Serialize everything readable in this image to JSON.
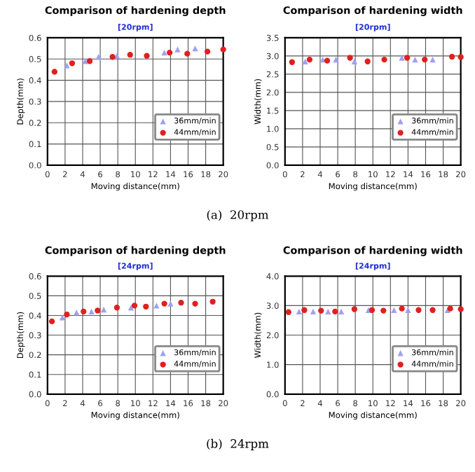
{
  "chart_data": [
    {
      "type": "scatter",
      "title": "Comparison of hardening depth",
      "subtitle": "[20rpm]",
      "xlabel": "Moving distance(mm)",
      "ylabel": "Depth(mm)",
      "annotations": [
        "(a)  20rpm"
      ],
      "xlim": [
        0,
        20
      ],
      "xticks": [
        0,
        2,
        4,
        6,
        8,
        10,
        12,
        14,
        16,
        18,
        20
      ],
      "ylim": [
        0,
        0.6
      ],
      "yticks": [
        {
          "value": 0,
          "label": "0.0"
        },
        {
          "value": 0.1,
          "label": "0.1"
        },
        {
          "value": 0.2,
          "label": "0.2"
        },
        {
          "value": 0.3,
          "label": "0.3"
        },
        {
          "value": 0.4,
          "label": "0.4"
        },
        {
          "value": 0.5,
          "label": "0.5"
        },
        {
          "value": 0.6,
          "label": "0.6"
        }
      ],
      "grid": true,
      "legend": "right",
      "series": [
        {
          "name": "36mm/min",
          "color": "#a0a0f0",
          "marker": "triangle",
          "x": [
            2.2,
            4.3,
            5.8,
            7.9,
            13.3,
            14.8,
            16.8
          ],
          "values": [
            0.47,
            0.49,
            0.51,
            0.515,
            0.53,
            0.545,
            0.55
          ]
        },
        {
          "name": "44mm/min",
          "color": "#e02020",
          "marker": "circle",
          "x": [
            0.8,
            2.8,
            4.8,
            7.4,
            9.4,
            11.3,
            13.9,
            15.9,
            18.2,
            20.0
          ],
          "values": [
            0.44,
            0.48,
            0.49,
            0.51,
            0.52,
            0.515,
            0.53,
            0.525,
            0.535,
            0.545
          ]
        }
      ]
    },
    {
      "type": "scatter",
      "title": "Comparison of hardening width",
      "subtitle": "[20rpm]",
      "xlabel": "Moving distance(mm)",
      "ylabel": "Width(mm)",
      "xlim": [
        0,
        20
      ],
      "xticks": [
        0,
        2,
        4,
        6,
        8,
        10,
        12,
        14,
        16,
        18,
        20
      ],
      "ylim": [
        0,
        3.5
      ],
      "yticks": [
        {
          "value": 0,
          "label": "0.0"
        },
        0.5,
        {
          "value": 1,
          "label": "1.0"
        },
        1.5,
        {
          "value": 2,
          "label": "2.0"
        },
        2.5,
        {
          "value": 3,
          "label": "3.0"
        },
        3.5
      ],
      "grid": true,
      "legend": "right",
      "series": [
        {
          "name": "36mm/min",
          "color": "#a0a0f0",
          "marker": "triangle",
          "x": [
            2.3,
            4.3,
            5.8,
            7.9,
            13.3,
            14.8,
            16.8
          ],
          "values": [
            2.85,
            2.9,
            2.9,
            2.85,
            2.95,
            2.9,
            2.9
          ]
        },
        {
          "name": "44mm/min",
          "color": "#e02020",
          "marker": "circle",
          "x": [
            0.8,
            2.8,
            4.8,
            7.4,
            9.4,
            11.3,
            13.9,
            15.9,
            19.0,
            20.0
          ],
          "values": [
            2.83,
            2.9,
            2.87,
            2.95,
            2.85,
            2.9,
            2.95,
            2.9,
            2.98,
            2.97
          ]
        }
      ]
    },
    {
      "type": "scatter",
      "title": "Comparison of hardening depth",
      "subtitle": "[24rpm]",
      "xlabel": "Moving distance(mm)",
      "ylabel": "Depth(mm)",
      "annotations": [
        "(b)  24rpm"
      ],
      "xlim": [
        0,
        20
      ],
      "xticks": [
        0,
        2,
        4,
        6,
        8,
        10,
        12,
        14,
        16,
        18,
        20
      ],
      "ylim": [
        0,
        0.6
      ],
      "yticks": [
        {
          "value": 0,
          "label": "0.0"
        },
        {
          "value": 0.1,
          "label": "0.1"
        },
        {
          "value": 0.2,
          "label": "0.2"
        },
        {
          "value": 0.3,
          "label": "0.3"
        },
        {
          "value": 0.4,
          "label": "0.4"
        },
        {
          "value": 0.5,
          "label": "0.5"
        },
        {
          "value": 0.6,
          "label": "0.6"
        }
      ],
      "grid": true,
      "legend": "right",
      "series": [
        {
          "name": "36mm/min",
          "color": "#a0a0f0",
          "marker": "triangle",
          "x": [
            1.7,
            3.3,
            5.0,
            6.4,
            9.5,
            11.0,
            12.4,
            14.0
          ],
          "values": [
            0.39,
            0.415,
            0.42,
            0.43,
            0.44,
            null,
            0.45,
            0.46
          ]
        },
        {
          "name": "44mm/min",
          "color": "#e02020",
          "marker": "circle",
          "x": [
            0.5,
            2.2,
            4.1,
            5.7,
            7.9,
            9.9,
            11.2,
            13.3,
            15.2,
            16.8,
            18.8
          ],
          "values": [
            0.37,
            0.405,
            0.42,
            0.425,
            0.44,
            0.45,
            0.445,
            0.46,
            0.465,
            0.46,
            0.47
          ]
        }
      ]
    },
    {
      "type": "scatter",
      "title": "Comparison of hardening width",
      "subtitle": "[24rpm]",
      "xlabel": "Moving distance(mm)",
      "ylabel": "Width(mm)",
      "xlim": [
        0,
        20
      ],
      "xticks": [
        0,
        2,
        4,
        6,
        8,
        10,
        12,
        14,
        16,
        18,
        20
      ],
      "ylim": [
        0,
        4
      ],
      "yticks": [
        {
          "value": 0,
          "label": "0.0"
        },
        {
          "value": 1,
          "label": "1.0"
        },
        {
          "value": 2,
          "label": "2.0"
        },
        {
          "value": 3,
          "label": "3.0"
        },
        {
          "value": 4,
          "label": "4.0"
        }
      ],
      "grid": true,
      "legend": "right",
      "series": [
        {
          "name": "36mm/min",
          "color": "#a0a0f0",
          "marker": "triangle",
          "x": [
            1.6,
            3.2,
            4.9,
            6.4,
            9.5,
            11.0,
            12.4,
            14.0,
            18.5
          ],
          "values": [
            2.8,
            2.8,
            2.8,
            2.8,
            2.85,
            null,
            2.85,
            2.85,
            2.85
          ]
        },
        {
          "name": "44mm/min",
          "color": "#e02020",
          "marker": "circle",
          "x": [
            0.4,
            2.2,
            4.1,
            5.7,
            7.9,
            9.9,
            11.2,
            13.3,
            15.2,
            16.8,
            18.8,
            20.0
          ],
          "values": [
            2.78,
            2.85,
            2.83,
            2.8,
            2.88,
            2.85,
            2.83,
            2.9,
            2.85,
            2.85,
            2.9,
            2.88
          ]
        }
      ]
    }
  ]
}
